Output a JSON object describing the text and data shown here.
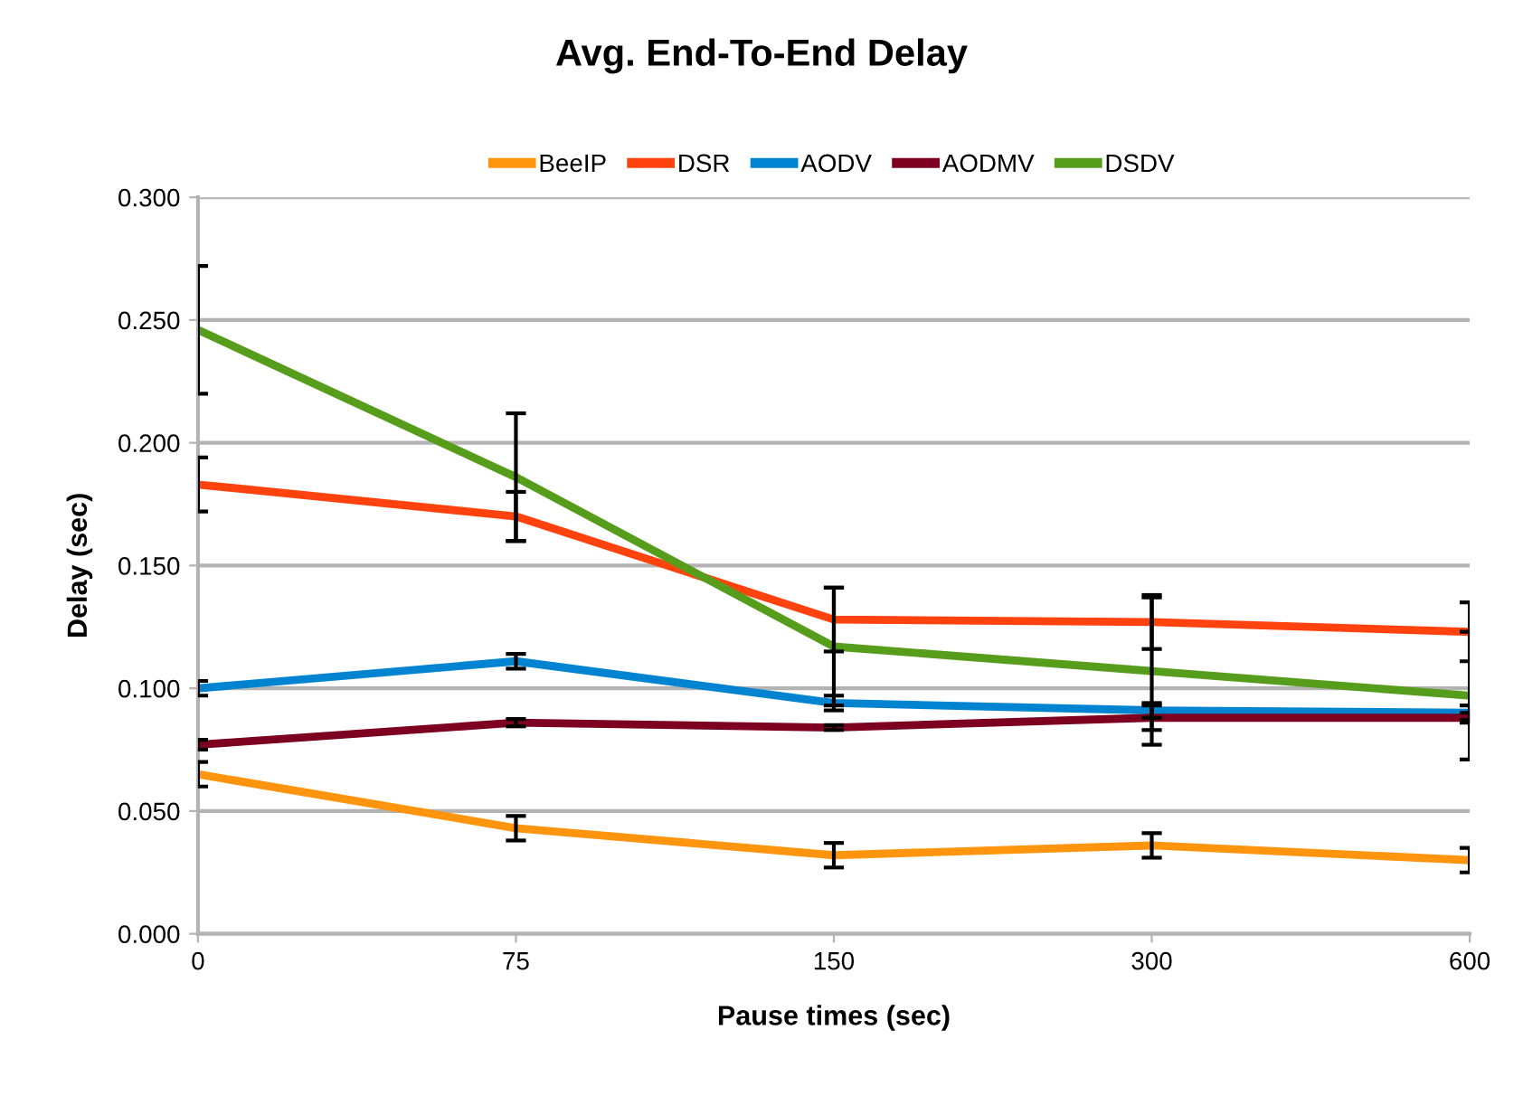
{
  "chart_data": {
    "type": "line",
    "title": "Avg. End-To-End Delay",
    "xlabel": "Pause times (sec)",
    "ylabel": "Delay (sec)",
    "categories": [
      "0",
      "75",
      "150",
      "300",
      "600"
    ],
    "series": [
      {
        "name": "BeeIP",
        "color": "#ff950e",
        "values": [
          0.065,
          0.043,
          0.032,
          0.036,
          0.03
        ],
        "errors": [
          0.005,
          0.005,
          0.005,
          0.005,
          0.005
        ]
      },
      {
        "name": "DSR",
        "color": "#ff420e",
        "values": [
          0.183,
          0.17,
          0.128,
          0.127,
          0.123
        ],
        "errors": [
          0.011,
          0.01,
          0.013,
          0.011,
          0.012
        ]
      },
      {
        "name": "AODV",
        "color": "#0084d1",
        "values": [
          0.1,
          0.111,
          0.094,
          0.091,
          0.09
        ],
        "errors": [
          0.003,
          0.003,
          0.003,
          0.003,
          0.003
        ]
      },
      {
        "name": "AODMV",
        "color": "#7e0021",
        "values": [
          0.077,
          0.086,
          0.084,
          0.088,
          0.088
        ],
        "errors": [
          0.002,
          0.0015,
          0.001,
          0.005,
          0.002
        ]
      },
      {
        "name": "DSDV",
        "color": "#579d1c",
        "values": [
          0.246,
          0.186,
          0.117,
          0.107,
          0.097
        ],
        "errors": [
          0.026,
          0.026,
          0.024,
          0.03,
          0.026
        ]
      }
    ],
    "ylim": [
      0,
      0.3
    ],
    "yticks": [
      {
        "value": 0,
        "label": "0.000"
      },
      {
        "value": 0.05,
        "label": "0.050"
      },
      {
        "value": 0.1,
        "label": "0.100"
      },
      {
        "value": 0.15,
        "label": "0.150"
      },
      {
        "value": 0.2,
        "label": "0.200"
      },
      {
        "value": 0.25,
        "label": "0.250"
      },
      {
        "value": 0.3,
        "label": "0.300"
      }
    ],
    "grid": true,
    "legend": "top",
    "marker": "none",
    "line_style": "solid"
  }
}
